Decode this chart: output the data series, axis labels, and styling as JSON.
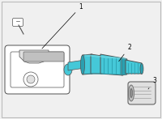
{
  "background_color": "#f0f0f0",
  "border_color": "#bbbbbb",
  "teal": "#45c8d8",
  "teal_light": "#70dde8",
  "teal_dark": "#2aa0b0",
  "gray_light": "#e0e0e0",
  "gray_mid": "#c0c0c0",
  "gray_dark": "#909090",
  "outline": "#505050",
  "white": "#ffffff",
  "lw": 0.7,
  "figsize": [
    2.0,
    1.47
  ],
  "dpi": 100,
  "part_labels": [
    "1",
    "2",
    "3"
  ]
}
